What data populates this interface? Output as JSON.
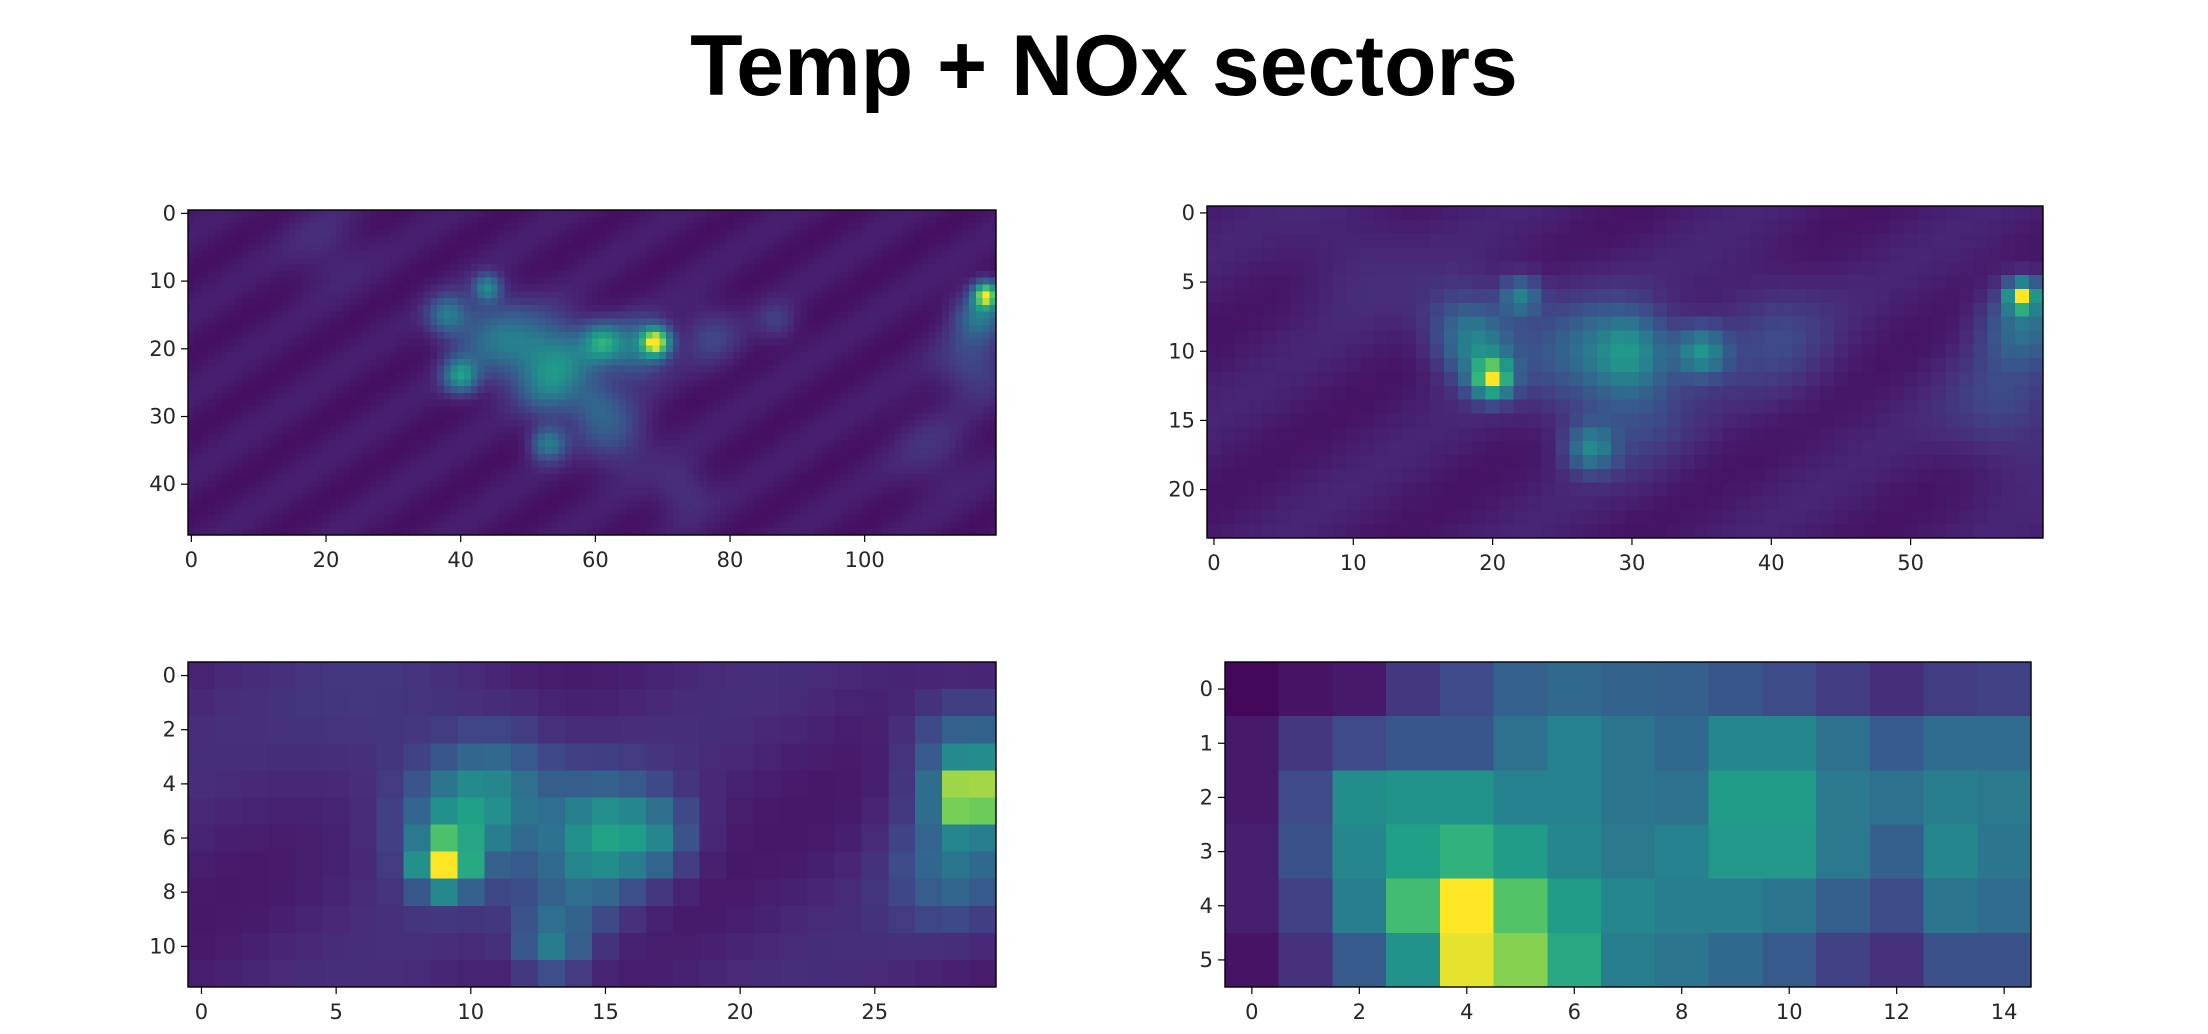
{
  "page": {
    "title": "Temp + NOx sectors"
  },
  "chart_data": [
    {
      "type": "heatmap",
      "colormap": "viridis",
      "grid": false,
      "rows": 48,
      "cols": 120,
      "xlim": [
        -0.5,
        119.5
      ],
      "ylim": [
        47.5,
        -0.5
      ],
      "xticks": [
        0,
        20,
        40,
        60,
        80,
        100
      ],
      "yticks": [
        0,
        10,
        20,
        30,
        40
      ],
      "background": 0.1,
      "hotspots": [
        {
          "x": 69,
          "y": 19,
          "s": 1.5,
          "v": 0.88
        },
        {
          "x": 66,
          "y": 20,
          "s": 3.0,
          "v": 0.35
        },
        {
          "x": 61,
          "y": 19,
          "s": 2.0,
          "v": 0.45
        },
        {
          "x": 56,
          "y": 21,
          "s": 3.5,
          "v": 0.3
        },
        {
          "x": 50,
          "y": 20,
          "s": 4.0,
          "v": 0.28
        },
        {
          "x": 44,
          "y": 18,
          "s": 4.0,
          "v": 0.25
        },
        {
          "x": 38,
          "y": 15,
          "s": 2.0,
          "v": 0.35
        },
        {
          "x": 40,
          "y": 24,
          "s": 1.8,
          "v": 0.5
        },
        {
          "x": 44,
          "y": 11,
          "s": 1.4,
          "v": 0.42
        },
        {
          "x": 53,
          "y": 26,
          "s": 3.0,
          "v": 0.28
        },
        {
          "x": 53,
          "y": 34,
          "s": 1.8,
          "v": 0.4
        },
        {
          "x": 63,
          "y": 33,
          "s": 3.5,
          "v": 0.18
        },
        {
          "x": 60,
          "y": 28,
          "s": 3.0,
          "v": 0.22
        },
        {
          "x": 77,
          "y": 18,
          "s": 3.0,
          "v": 0.15
        },
        {
          "x": 87,
          "y": 16,
          "s": 2.0,
          "v": 0.13
        },
        {
          "x": 118,
          "y": 12,
          "s": 1.3,
          "v": 0.85
        },
        {
          "x": 117,
          "y": 15,
          "s": 2.5,
          "v": 0.35
        },
        {
          "x": 116,
          "y": 22,
          "s": 3.5,
          "v": 0.18
        },
        {
          "x": 110,
          "y": 35,
          "s": 4.0,
          "v": 0.08
        },
        {
          "x": 73,
          "y": 41,
          "s": 3.0,
          "v": 0.1
        },
        {
          "x": 20,
          "y": 5,
          "s": 4.0,
          "v": 0.07
        }
      ]
    },
    {
      "type": "heatmap",
      "colormap": "viridis",
      "grid": false,
      "rows": 24,
      "cols": 60,
      "xlim": [
        -0.5,
        59.5
      ],
      "ylim": [
        23.5,
        -0.5
      ],
      "xticks": [
        0,
        10,
        20,
        30,
        40,
        50
      ],
      "yticks": [
        0,
        5,
        10,
        15,
        20
      ],
      "background": 0.12,
      "hotspots": [
        {
          "x": 20,
          "y": 12,
          "s": 1.0,
          "v": 0.72
        },
        {
          "x": 19,
          "y": 10,
          "s": 1.8,
          "v": 0.3
        },
        {
          "x": 22,
          "y": 6,
          "s": 1.0,
          "v": 0.38
        },
        {
          "x": 18,
          "y": 8,
          "s": 2.0,
          "v": 0.22
        },
        {
          "x": 30,
          "y": 10,
          "s": 2.0,
          "v": 0.38
        },
        {
          "x": 35,
          "y": 10,
          "s": 1.3,
          "v": 0.45
        },
        {
          "x": 26,
          "y": 10,
          "s": 3.0,
          "v": 0.22
        },
        {
          "x": 27,
          "y": 17,
          "s": 1.2,
          "v": 0.38
        },
        {
          "x": 30,
          "y": 14,
          "s": 3.0,
          "v": 0.15
        },
        {
          "x": 40,
          "y": 9,
          "s": 3.0,
          "v": 0.14
        },
        {
          "x": 58,
          "y": 6,
          "s": 0.8,
          "v": 0.75
        },
        {
          "x": 58,
          "y": 8,
          "s": 2.0,
          "v": 0.3
        },
        {
          "x": 57,
          "y": 14,
          "s": 3.0,
          "v": 0.15
        },
        {
          "x": 10,
          "y": 3,
          "s": 3.0,
          "v": 0.06
        }
      ]
    },
    {
      "type": "heatmap",
      "colormap": "viridis",
      "grid": false,
      "rows": 12,
      "cols": 30,
      "xlim": [
        -0.5,
        29.5
      ],
      "ylim": [
        11.5,
        -0.5
      ],
      "xticks": [
        0,
        5,
        10,
        15,
        20,
        25
      ],
      "yticks": [
        0,
        2,
        4,
        6,
        8,
        10
      ],
      "background": 0.15,
      "hotspots": [
        {
          "x": 9,
          "y": 7,
          "s": 0.7,
          "v": 0.8
        },
        {
          "x": 9.5,
          "y": 5.5,
          "s": 1.4,
          "v": 0.35
        },
        {
          "x": 11,
          "y": 4,
          "s": 1.5,
          "v": 0.25
        },
        {
          "x": 15,
          "y": 5.8,
          "s": 1.4,
          "v": 0.42
        },
        {
          "x": 17,
          "y": 6,
          "s": 1.0,
          "v": 0.25
        },
        {
          "x": 13,
          "y": 10,
          "s": 0.9,
          "v": 0.32
        },
        {
          "x": 14,
          "y": 8,
          "s": 1.5,
          "v": 0.18
        },
        {
          "x": 28.5,
          "y": 4.5,
          "s": 0.8,
          "v": 0.75
        },
        {
          "x": 28.5,
          "y": 3,
          "s": 1.5,
          "v": 0.35
        },
        {
          "x": 28,
          "y": 7,
          "s": 1.5,
          "v": 0.28
        },
        {
          "x": 8,
          "y": 3,
          "s": 3.0,
          "v": 0.08
        }
      ]
    },
    {
      "type": "heatmap",
      "colormap": "viridis",
      "grid": false,
      "rows": 6,
      "cols": 15,
      "xlim": [
        -0.5,
        14.5
      ],
      "ylim": [
        5.5,
        -0.5
      ],
      "xticks": [
        0,
        2,
        4,
        6,
        8,
        10,
        12,
        14
      ],
      "yticks": [
        0,
        1,
        2,
        3,
        4,
        5
      ],
      "values": [
        [
          0.02,
          0.06,
          0.08,
          0.18,
          0.25,
          0.35,
          0.38,
          0.36,
          0.34,
          0.3,
          0.26,
          0.2,
          0.15,
          0.2,
          0.22
        ],
        [
          0.08,
          0.18,
          0.25,
          0.3,
          0.3,
          0.42,
          0.5,
          0.44,
          0.38,
          0.52,
          0.52,
          0.42,
          0.32,
          0.4,
          0.4
        ],
        [
          0.08,
          0.25,
          0.55,
          0.58,
          0.58,
          0.5,
          0.5,
          0.44,
          0.42,
          0.62,
          0.62,
          0.46,
          0.42,
          0.48,
          0.46
        ],
        [
          0.1,
          0.28,
          0.52,
          0.64,
          0.72,
          0.62,
          0.52,
          0.46,
          0.5,
          0.6,
          0.6,
          0.46,
          0.34,
          0.52,
          0.44
        ],
        [
          0.1,
          0.22,
          0.48,
          0.78,
          1.0,
          0.82,
          0.62,
          0.52,
          0.48,
          0.48,
          0.44,
          0.34,
          0.26,
          0.44,
          0.4
        ],
        [
          0.06,
          0.16,
          0.32,
          0.58,
          0.98,
          0.9,
          0.68,
          0.48,
          0.44,
          0.38,
          0.32,
          0.22,
          0.16,
          0.28,
          0.28
        ]
      ]
    }
  ]
}
